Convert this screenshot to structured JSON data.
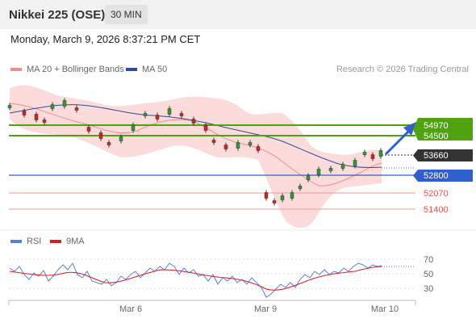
{
  "header": {
    "title": "Nikkei 225 (OSE)",
    "timeframe": "30 MIN"
  },
  "datetime": "Monday, March 9, 2026 8:37:21 PM CET",
  "legend": {
    "bollinger": {
      "label": "MA 20 + Bollinger Bands",
      "color": "#f08c8c"
    },
    "ma50": {
      "label": "MA 50",
      "color": "#2a4f9c"
    }
  },
  "credit": "Research © 2026 Trading Central",
  "price_levels": [
    {
      "value": "54970",
      "style": "resistance",
      "color": "#4fa30e"
    },
    {
      "value": "54500",
      "style": "resistance",
      "color": "#4fa30e"
    },
    {
      "value": "53660",
      "style": "current",
      "color": "#333333"
    },
    {
      "value": "52800",
      "style": "pivot",
      "color": "#2f5fcc"
    },
    {
      "value": "52070",
      "style": "support",
      "color": "#e05555"
    },
    {
      "value": "51400",
      "style": "support",
      "color": "#e05555"
    }
  ],
  "rsi_legend": {
    "rsi": {
      "label": "RSI",
      "color": "#5b7fd6"
    },
    "ma9": {
      "label": "9MA",
      "color": "#d42020"
    }
  },
  "rsi_axis": [
    "70",
    "50",
    "30"
  ],
  "x_axis": [
    "Mar 6",
    "Mar 9",
    "Mar 10"
  ]
}
